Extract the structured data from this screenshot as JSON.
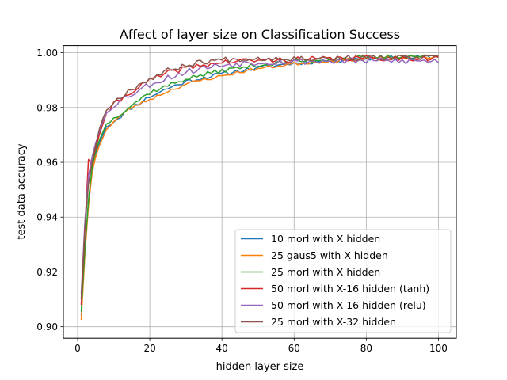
{
  "chart_data": {
    "type": "line",
    "title": "Affect of layer size on Classification Success",
    "xlabel": "hidden layer size",
    "ylabel": "test data accuracy",
    "xlim": [
      -3.95,
      104.95
    ],
    "ylim": [
      0.8958,
      1.0026
    ],
    "xticks": [
      0,
      20,
      40,
      60,
      80,
      100
    ],
    "xtick_labels": [
      "0",
      "20",
      "40",
      "60",
      "80",
      "100"
    ],
    "yticks": [
      0.9,
      0.92,
      0.94,
      0.96,
      0.98,
      1.0
    ],
    "ytick_labels": [
      "0.90",
      "0.92",
      "0.94",
      "0.96",
      "0.98",
      "1.00"
    ],
    "grid": true,
    "legend_position": "lower-right",
    "x_range": [
      1,
      100
    ],
    "series": [
      {
        "name": "10 morl with X hidden",
        "color": "#1f77b4",
        "anchors": [
          [
            1,
            0.904
          ],
          [
            2,
            0.928
          ],
          [
            3,
            0.945
          ],
          [
            4,
            0.957
          ],
          [
            5,
            0.963
          ],
          [
            6,
            0.967
          ],
          [
            7,
            0.97
          ],
          [
            8,
            0.973
          ],
          [
            10,
            0.975
          ],
          [
            12,
            0.977
          ],
          [
            15,
            0.98
          ],
          [
            20,
            0.984
          ],
          [
            25,
            0.987
          ],
          [
            30,
            0.9895
          ],
          [
            35,
            0.991
          ],
          [
            40,
            0.9922
          ],
          [
            45,
            0.9935
          ],
          [
            50,
            0.9945
          ],
          [
            60,
            0.9962
          ],
          [
            70,
            0.9972
          ],
          [
            80,
            0.9978
          ],
          [
            90,
            0.9982
          ],
          [
            100,
            0.9985
          ]
        ],
        "noise": 0.0008,
        "seed": 11
      },
      {
        "name": "25 gaus5 with X hidden",
        "color": "#ff7f0e",
        "anchors": [
          [
            1,
            0.9025
          ],
          [
            2,
            0.926
          ],
          [
            3,
            0.944
          ],
          [
            4,
            0.956
          ],
          [
            5,
            0.962
          ],
          [
            6,
            0.966
          ],
          [
            7,
            0.969
          ],
          [
            8,
            0.972
          ],
          [
            10,
            0.975
          ],
          [
            12,
            0.977
          ],
          [
            15,
            0.98
          ],
          [
            20,
            0.983
          ],
          [
            25,
            0.986
          ],
          [
            30,
            0.9885
          ],
          [
            35,
            0.9902
          ],
          [
            40,
            0.9915
          ],
          [
            45,
            0.993
          ],
          [
            50,
            0.9942
          ],
          [
            60,
            0.996
          ],
          [
            70,
            0.997
          ],
          [
            80,
            0.9978
          ],
          [
            90,
            0.9983
          ],
          [
            100,
            0.9985
          ]
        ],
        "noise": 0.0006,
        "seed": 23
      },
      {
        "name": "25 morl with X hidden",
        "color": "#2ca02c",
        "anchors": [
          [
            1,
            0.9055
          ],
          [
            2,
            0.928
          ],
          [
            3,
            0.946
          ],
          [
            4,
            0.958
          ],
          [
            5,
            0.964
          ],
          [
            6,
            0.968
          ],
          [
            7,
            0.971
          ],
          [
            8,
            0.974
          ],
          [
            10,
            0.976
          ],
          [
            12,
            0.978
          ],
          [
            15,
            0.981
          ],
          [
            20,
            0.9855
          ],
          [
            25,
            0.988
          ],
          [
            30,
            0.9905
          ],
          [
            35,
            0.992
          ],
          [
            40,
            0.9935
          ],
          [
            45,
            0.9945
          ],
          [
            50,
            0.9955
          ],
          [
            60,
            0.9968
          ],
          [
            70,
            0.9977
          ],
          [
            80,
            0.9982
          ],
          [
            90,
            0.9987
          ],
          [
            100,
            0.9988
          ]
        ],
        "noise": 0.0008,
        "seed": 37
      },
      {
        "name": "50 morl with X-16 hidden (tanh)",
        "color": "#d62728",
        "anchors": [
          [
            1,
            0.908
          ],
          [
            2,
            0.935
          ],
          [
            3,
            0.961
          ],
          [
            4,
            0.96
          ],
          [
            5,
            0.965
          ],
          [
            6,
            0.97
          ],
          [
            7,
            0.974
          ],
          [
            8,
            0.978
          ],
          [
            10,
            0.981
          ],
          [
            12,
            0.983
          ],
          [
            15,
            0.986
          ],
          [
            20,
            0.99
          ],
          [
            25,
            0.9925
          ],
          [
            30,
            0.9945
          ],
          [
            35,
            0.9955
          ],
          [
            40,
            0.9965
          ],
          [
            45,
            0.997
          ],
          [
            50,
            0.9972
          ],
          [
            60,
            0.9975
          ],
          [
            70,
            0.9978
          ],
          [
            80,
            0.998
          ],
          [
            90,
            0.998
          ],
          [
            100,
            0.998
          ]
        ],
        "noise": 0.001,
        "seed": 41
      },
      {
        "name": "50 morl with X-16 hidden (relu)",
        "color": "#9467bd",
        "anchors": [
          [
            1,
            0.912
          ],
          [
            2,
            0.938
          ],
          [
            3,
            0.955
          ],
          [
            4,
            0.962
          ],
          [
            5,
            0.967
          ],
          [
            6,
            0.971
          ],
          [
            7,
            0.975
          ],
          [
            8,
            0.978
          ],
          [
            10,
            0.981
          ],
          [
            12,
            0.983
          ],
          [
            15,
            0.985
          ],
          [
            20,
            0.9885
          ],
          [
            25,
            0.991
          ],
          [
            30,
            0.993
          ],
          [
            35,
            0.9945
          ],
          [
            40,
            0.9955
          ],
          [
            45,
            0.9962
          ],
          [
            50,
            0.9966
          ],
          [
            60,
            0.9968
          ],
          [
            70,
            0.997
          ],
          [
            80,
            0.997
          ],
          [
            90,
            0.997
          ],
          [
            100,
            0.997
          ]
        ],
        "noise": 0.0012,
        "seed": 53
      },
      {
        "name": "25 morl with X-32 hidden",
        "color": "#8c564b",
        "anchors": [
          [
            1,
            0.91
          ],
          [
            2,
            0.936
          ],
          [
            3,
            0.952
          ],
          [
            4,
            0.96
          ],
          [
            5,
            0.966
          ],
          [
            6,
            0.972
          ],
          [
            7,
            0.976
          ],
          [
            8,
            0.979
          ],
          [
            10,
            0.982
          ],
          [
            12,
            0.984
          ],
          [
            15,
            0.987
          ],
          [
            20,
            0.9905
          ],
          [
            25,
            0.9935
          ],
          [
            30,
            0.9955
          ],
          [
            35,
            0.9968
          ],
          [
            40,
            0.9975
          ],
          [
            45,
            0.9978
          ],
          [
            50,
            0.998
          ],
          [
            60,
            0.998
          ],
          [
            70,
            0.998
          ],
          [
            80,
            0.9982
          ],
          [
            90,
            0.9982
          ],
          [
            100,
            0.9982
          ]
        ],
        "noise": 0.001,
        "seed": 67
      }
    ]
  }
}
